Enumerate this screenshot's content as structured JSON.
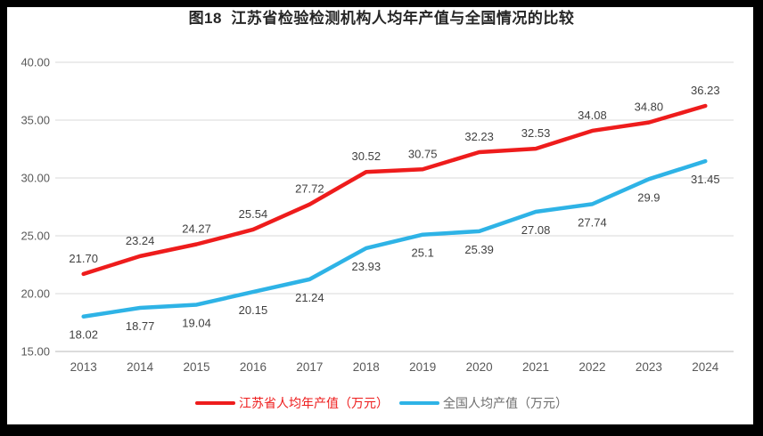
{
  "title": "图18  江苏省检验检测机构人均年产值与全国情况的比较",
  "chart_data": {
    "type": "line",
    "title": "图18  江苏省检验检测机构人均年产值与全国情况的比较",
    "categories": [
      "2013",
      "2014",
      "2015",
      "2016",
      "2017",
      "2018",
      "2019",
      "2020",
      "2021",
      "2022",
      "2023",
      "2024"
    ],
    "series": [
      {
        "name": "江苏省人均年产值（万元）",
        "color": "#ee1c1c",
        "legend_text_color": "#ee1c1c",
        "label_position": "above",
        "values": [
          21.7,
          23.24,
          24.27,
          25.54,
          27.72,
          30.52,
          30.75,
          32.23,
          32.53,
          34.08,
          34.8,
          36.23
        ],
        "labels": [
          "21.70",
          "23.24",
          "24.27",
          "25.54",
          "27.72",
          "30.52",
          "30.75",
          "32.23",
          "32.53",
          "34.08",
          "34.80",
          "36.23"
        ]
      },
      {
        "name": "全国人均产值（万元）",
        "color": "#2eb3e6",
        "legend_text_color": "#6e6e6e",
        "label_position": "below",
        "values": [
          18.02,
          18.77,
          19.04,
          20.15,
          21.24,
          23.93,
          25.1,
          25.39,
          27.08,
          27.74,
          29.9,
          31.45
        ],
        "labels": [
          "18.02",
          "18.77",
          "19.04",
          "20.15",
          "21.24",
          "23.93",
          "25.1",
          "25.39",
          "27.08",
          "27.74",
          "29.9",
          "31.45"
        ]
      }
    ],
    "ylim": [
      15,
      40
    ],
    "yticks": [
      "40.00",
      "35.00",
      "30.00",
      "25.00",
      "20.00",
      "15.00"
    ],
    "xlabel": "",
    "ylabel": "",
    "grid": true,
    "grid_color": "#d9d9d9",
    "axis_line_color": "#c6c6c6",
    "axis_label_color": "#595959",
    "data_label_color": "#404040",
    "legend_position": "bottom"
  }
}
